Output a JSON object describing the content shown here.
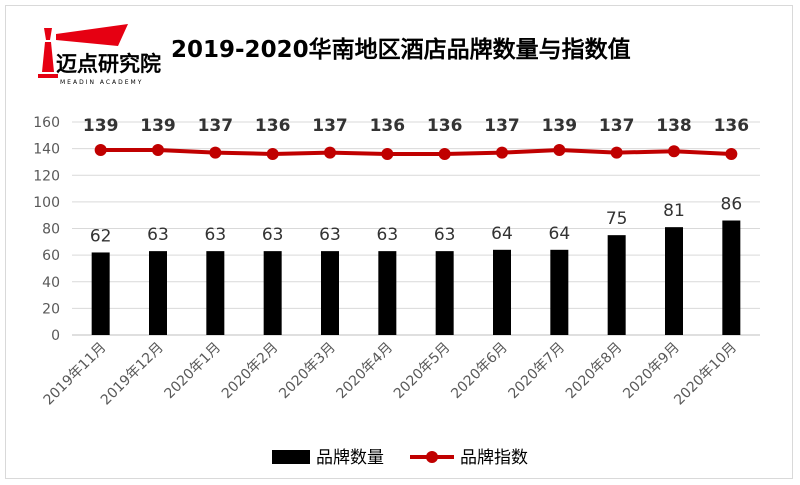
{
  "logo": {
    "name": "迈点研究院",
    "sub": "MEADIN ACADEMY",
    "colors": {
      "red": "#e60012",
      "dark": "#000000"
    }
  },
  "chart_data": {
    "type": "bar+line",
    "title": "2019-2020华南地区酒店品牌数量与指数值",
    "categories": [
      "2019年11月",
      "2019年12月",
      "2020年1月",
      "2020年2月",
      "2020年3月",
      "2020年4月",
      "2020年5月",
      "2020年6月",
      "2020年7月",
      "2020年8月",
      "2020年9月",
      "2020年10月"
    ],
    "series": [
      {
        "name": "品牌数量",
        "type": "bar",
        "color": "#000000",
        "values": [
          62,
          63,
          63,
          63,
          63,
          63,
          63,
          64,
          64,
          75,
          81,
          86
        ]
      },
      {
        "name": "品牌指数",
        "type": "line",
        "color": "#c00000",
        "values": [
          139,
          139,
          137,
          136,
          137,
          136,
          136,
          137,
          139,
          137,
          138,
          136
        ]
      }
    ],
    "ylim": [
      0,
      160
    ],
    "yticks": [
      0,
      20,
      40,
      60,
      80,
      100,
      120,
      140,
      160
    ],
    "grid": true,
    "legend": "bottom"
  }
}
